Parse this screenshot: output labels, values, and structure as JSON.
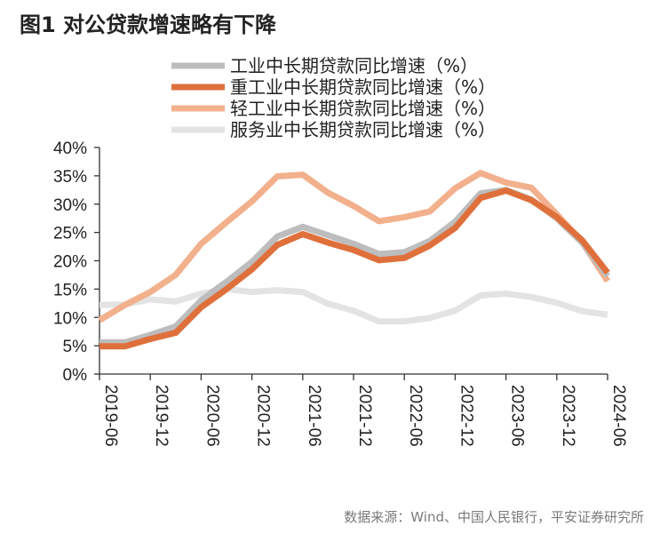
{
  "figure": {
    "title": "图1  对公贷款增速略有下降",
    "source": "数据来源：Wind、中国人民银行，平安证券研究所"
  },
  "chart_data": {
    "type": "line",
    "x": [
      "2019-06",
      "2019-09",
      "2019-12",
      "2020-03",
      "2020-06",
      "2020-09",
      "2020-12",
      "2021-03",
      "2021-06",
      "2021-09",
      "2021-12",
      "2022-03",
      "2022-06",
      "2022-09",
      "2022-12",
      "2023-03",
      "2023-06",
      "2023-09",
      "2023-12",
      "2024-03",
      "2024-06"
    ],
    "x_tick_labels": [
      "2019-06",
      "2019-12",
      "2020-06",
      "2020-12",
      "2021-06",
      "2021-12",
      "2022-06",
      "2022-12",
      "2023-06",
      "2023-12",
      "2024-06"
    ],
    "y_tick_labels": [
      "0%",
      "5%",
      "10%",
      "15%",
      "20%",
      "25%",
      "30%",
      "35%",
      "40%"
    ],
    "ylim": [
      0,
      40
    ],
    "grid": false,
    "legend_position": "top",
    "series": [
      {
        "name": "工业中长期贷款同比增速（%）",
        "color": "#bdbdbd",
        "values": [
          5.6,
          5.6,
          6.9,
          8.4,
          13.0,
          16.3,
          19.8,
          24.3,
          26.0,
          24.5,
          23.0,
          21.2,
          21.5,
          23.5,
          26.9,
          31.9,
          32.5,
          30.8,
          27.5,
          23.2,
          17.3
        ]
      },
      {
        "name": "重工业中长期贷款同比增速（%）",
        "color": "#e0703b",
        "values": [
          4.9,
          4.9,
          6.2,
          7.3,
          11.8,
          15.0,
          18.5,
          22.8,
          24.7,
          23.2,
          21.9,
          20.1,
          20.5,
          22.7,
          25.8,
          31.1,
          32.4,
          30.7,
          27.7,
          23.6,
          17.9
        ]
      },
      {
        "name": "轻工业中长期贷款同比增速（%）",
        "color": "#f2b08c",
        "values": [
          9.5,
          12.2,
          14.5,
          17.5,
          23.0,
          26.8,
          30.5,
          34.9,
          35.2,
          32.0,
          29.7,
          27.0,
          27.7,
          28.7,
          32.8,
          35.5,
          33.8,
          32.9,
          28.2,
          23.3,
          16.4
        ]
      },
      {
        "name": "服务业中长期贷款同比增速（%）",
        "color": "#e3e3e3",
        "values": [
          12.2,
          12.3,
          13.2,
          12.8,
          14.2,
          15.0,
          14.5,
          14.8,
          14.5,
          12.4,
          11.2,
          9.3,
          9.3,
          9.9,
          11.2,
          13.9,
          14.2,
          13.6,
          12.6,
          11.1,
          10.5
        ]
      }
    ]
  }
}
